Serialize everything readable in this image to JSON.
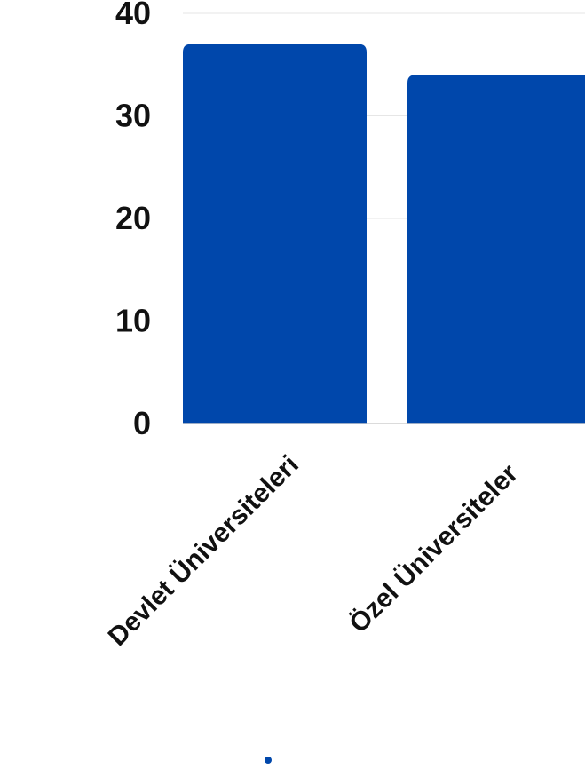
{
  "chart_data": {
    "type": "bar",
    "categories": [
      "Devlet Üniversiteleri",
      "Özel Üniversiteler"
    ],
    "values": [
      37,
      34
    ],
    "ylim": [
      0,
      40
    ],
    "yticks": [
      0,
      10,
      20,
      30,
      40
    ],
    "grid": true,
    "title": "",
    "xlabel": "",
    "ylabel": "",
    "bar_color": "#0047AB",
    "legend_marker_color": "#0047AB"
  }
}
